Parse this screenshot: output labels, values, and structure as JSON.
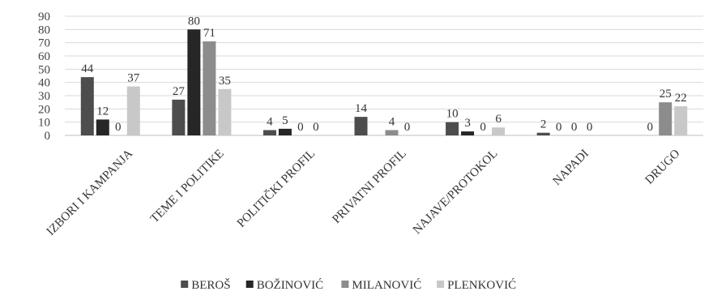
{
  "chart_data": {
    "type": "bar",
    "title": "",
    "xlabel": "",
    "ylabel": "",
    "ylim": [
      0,
      90
    ],
    "yticks": [
      0,
      10,
      20,
      30,
      40,
      50,
      60,
      70,
      80,
      90
    ],
    "grid": true,
    "legend_position": "bottom",
    "categories": [
      "IZBORI I KAMPANJA",
      "TEME I POLITIKE",
      "POLITIČKI PROFIL",
      "PRIVATNI PROFIL",
      "NAJAVE/PROTOKOL",
      "NAPADI",
      "DRUGO"
    ],
    "series": [
      {
        "name": "BEROŠ",
        "color": "#4d4d4d",
        "values": [
          44,
          27,
          4,
          14,
          10,
          2,
          null
        ]
      },
      {
        "name": "BOŽINOVIĆ",
        "color": "#262626",
        "values": [
          12,
          80,
          5,
          null,
          3,
          0,
          0
        ]
      },
      {
        "name": "MILANOVIĆ",
        "color": "#8c8c8c",
        "values": [
          0,
          71,
          0,
          4,
          0,
          0,
          25
        ]
      },
      {
        "name": "PLENKOVIĆ",
        "color": "#c8c8c8",
        "values": [
          37,
          35,
          0,
          0,
          6,
          0,
          22
        ]
      }
    ]
  }
}
